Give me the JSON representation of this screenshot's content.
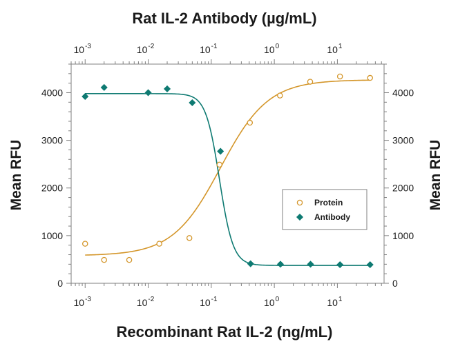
{
  "chart_data": {
    "type": "scatter",
    "title": "Rat IL-2 Antibody (µg/mL)",
    "xlabel": "Recombinant Rat IL-2 (ng/mL)",
    "ylabel": "Mean RFU",
    "ylabel_right": "Mean RFU",
    "x_scale": "log",
    "xlim": [
      0.0006,
      55
    ],
    "ylim": [
      0,
      4600
    ],
    "x_ticks": [
      {
        "value": 0.001,
        "base": "10",
        "exp": "-3"
      },
      {
        "value": 0.01,
        "base": "10",
        "exp": "-2"
      },
      {
        "value": 0.1,
        "base": "10",
        "exp": "-1"
      },
      {
        "value": 1,
        "base": "10",
        "exp": "0"
      },
      {
        "value": 10,
        "base": "10",
        "exp": "1"
      }
    ],
    "y_ticks": [
      {
        "value": 0,
        "label": "0"
      },
      {
        "value": 1000,
        "label": "1000"
      },
      {
        "value": 2000,
        "label": "2000"
      },
      {
        "value": 3000,
        "label": "3000"
      },
      {
        "value": 4000,
        "label": "4000"
      }
    ],
    "legend_position": "right",
    "series": [
      {
        "name": "Protein",
        "marker": "open-circle",
        "color": "#d4962a",
        "x": [
          0.001,
          0.002,
          0.005,
          0.015,
          0.045,
          0.135,
          0.41,
          1.23,
          3.7,
          11,
          33
        ],
        "y": [
          830,
          490,
          490,
          830,
          950,
          2490,
          3370,
          3940,
          4230,
          4340,
          4310
        ],
        "fit": {
          "bottom": 580,
          "top": 4270,
          "ec50": 0.14,
          "hill": 1.15
        }
      },
      {
        "name": "Antibody",
        "marker": "filled-diamond",
        "color": "#0e7a72",
        "x": [
          0.001,
          0.002,
          0.01,
          0.02,
          0.05,
          0.14,
          0.42,
          1.25,
          3.75,
          11,
          33
        ],
        "y": [
          3920,
          4110,
          4000,
          4080,
          3790,
          2770,
          410,
          400,
          400,
          390,
          390
        ],
        "fit": {
          "bottom": 375,
          "top": 3980,
          "ec50": 0.135,
          "hill": -4.0
        }
      }
    ]
  }
}
